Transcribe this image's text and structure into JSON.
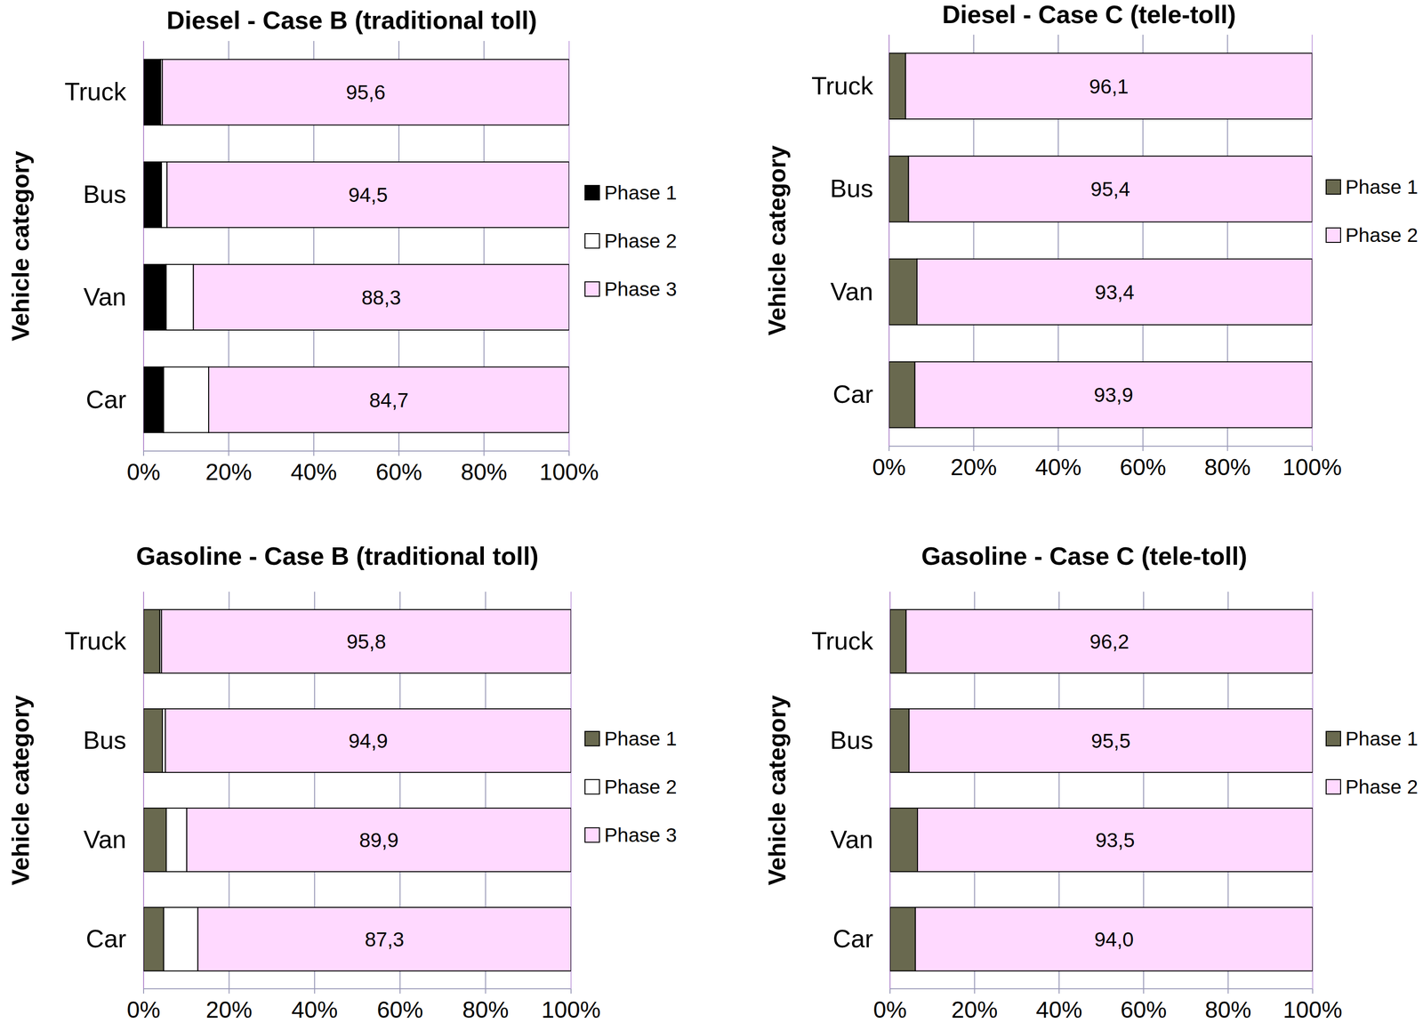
{
  "chart_data": [
    {
      "type": "bar",
      "title": "Diesel - Case B (traditional toll)",
      "orientation": "horizontal",
      "stacked": true,
      "grid": true,
      "legend": "right",
      "data_labels": true,
      "ylabel": "Vehicle category",
      "categories": [
        "Truck",
        "Bus",
        "Van",
        "Car"
      ],
      "xlim": [
        0,
        100
      ],
      "xticks": [
        {
          "value": 0,
          "label": "0%"
        },
        {
          "value": 20,
          "label": "20%"
        },
        {
          "value": 40,
          "label": "40%"
        },
        {
          "value": 60,
          "label": "60%"
        },
        {
          "value": 80,
          "label": "80%"
        },
        {
          "value": 100,
          "label": "100%"
        }
      ],
      "series": [
        {
          "name": "Phase 1",
          "color": "#000000",
          "values": [
            4.0,
            4.2,
            5.3,
            4.7
          ]
        },
        {
          "name": "Phase 2",
          "color": "#ffffff",
          "values": [
            0.4,
            1.3,
            6.4,
            10.6
          ]
        },
        {
          "name": "Phase 3",
          "color": "#ffd9ff",
          "values": [
            95.6,
            94.5,
            88.3,
            84.7
          ],
          "value_labels": [
            "95,6",
            "94,5",
            "88,3",
            "84,7"
          ]
        }
      ]
    },
    {
      "type": "bar",
      "title": "Diesel - Case C (tele-toll)",
      "orientation": "horizontal",
      "stacked": true,
      "grid": true,
      "legend": "right",
      "data_labels": true,
      "ylabel": "Vehicle category",
      "categories": [
        "Truck",
        "Bus",
        "Van",
        "Car"
      ],
      "xlim": [
        0,
        100
      ],
      "xticks": [
        {
          "value": 0,
          "label": "0%"
        },
        {
          "value": 20,
          "label": "20%"
        },
        {
          "value": 40,
          "label": "40%"
        },
        {
          "value": 60,
          "label": "60%"
        },
        {
          "value": 80,
          "label": "80%"
        },
        {
          "value": 100,
          "label": "100%"
        }
      ],
      "series": [
        {
          "name": "Phase 1",
          "color": "#69694f",
          "values": [
            3.9,
            4.6,
            6.6,
            6.1
          ]
        },
        {
          "name": "Phase 2",
          "color": "#ffd9ff",
          "values": [
            96.1,
            95.4,
            93.4,
            93.9
          ],
          "value_labels": [
            "96,1",
            "95,4",
            "93,4",
            "93,9"
          ]
        }
      ]
    },
    {
      "type": "bar",
      "title": "Gasoline - Case B (traditional toll)",
      "orientation": "horizontal",
      "stacked": true,
      "grid": true,
      "legend": "right",
      "data_labels": true,
      "ylabel": "Vehicle category",
      "categories": [
        "Truck",
        "Bus",
        "Van",
        "Car"
      ],
      "xlim": [
        0,
        100
      ],
      "xticks": [
        {
          "value": 0,
          "label": "0%"
        },
        {
          "value": 20,
          "label": "20%"
        },
        {
          "value": 40,
          "label": "40%"
        },
        {
          "value": 60,
          "label": "60%"
        },
        {
          "value": 80,
          "label": "80%"
        },
        {
          "value": 100,
          "label": "100%"
        }
      ],
      "series": [
        {
          "name": "Phase 1",
          "color": "#69694f",
          "values": [
            3.8,
            4.4,
            5.3,
            4.7
          ]
        },
        {
          "name": "Phase 2",
          "color": "#ffffff",
          "values": [
            0.4,
            0.7,
            4.8,
            8.0
          ]
        },
        {
          "name": "Phase 3",
          "color": "#ffd9ff",
          "values": [
            95.8,
            94.9,
            89.9,
            87.3
          ],
          "value_labels": [
            "95,8",
            "94,9",
            "89,9",
            "87,3"
          ]
        }
      ]
    },
    {
      "type": "bar",
      "title": "Gasoline - Case C (tele-toll)",
      "orientation": "horizontal",
      "stacked": true,
      "grid": true,
      "legend": "right",
      "data_labels": true,
      "ylabel": "Vehicle category",
      "categories": [
        "Truck",
        "Bus",
        "Van",
        "Car"
      ],
      "xlim": [
        0,
        100
      ],
      "xticks": [
        {
          "value": 0,
          "label": "0%"
        },
        {
          "value": 20,
          "label": "20%"
        },
        {
          "value": 40,
          "label": "40%"
        },
        {
          "value": 60,
          "label": "60%"
        },
        {
          "value": 80,
          "label": "80%"
        },
        {
          "value": 100,
          "label": "100%"
        }
      ],
      "series": [
        {
          "name": "Phase 1",
          "color": "#69694f",
          "values": [
            3.8,
            4.5,
            6.5,
            6.0
          ]
        },
        {
          "name": "Phase 2",
          "color": "#ffd9ff",
          "values": [
            96.2,
            95.5,
            93.5,
            94.0
          ],
          "value_labels": [
            "96,2",
            "95,5",
            "93,5",
            "94,0"
          ]
        }
      ]
    }
  ]
}
